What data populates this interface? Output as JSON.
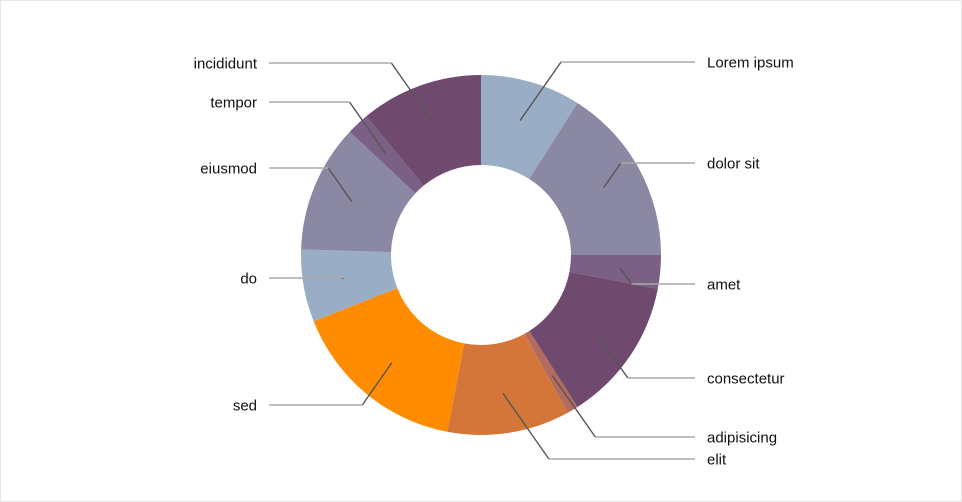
{
  "chart_data": {
    "type": "pie",
    "donut": true,
    "title": "",
    "legend": "none",
    "labels": [
      "Lorem ipsum",
      "dolor sit",
      "amet",
      "consectetur",
      "adipisicing",
      "elit",
      "sed",
      "do",
      "eiusmod",
      "tempor",
      "incididunt"
    ],
    "values": [
      9,
      16,
      3,
      13,
      1,
      11,
      16,
      6.5,
      11.5,
      2,
      11
    ],
    "colors": [
      "#99adc5",
      "#8b88a3",
      "#7a6085",
      "#6f4a6e",
      "#b36b5e",
      "#d4763a",
      "#ff8c00",
      "#99adc5",
      "#8b88a3",
      "#7a6085",
      "#6f4a6e"
    ]
  }
}
